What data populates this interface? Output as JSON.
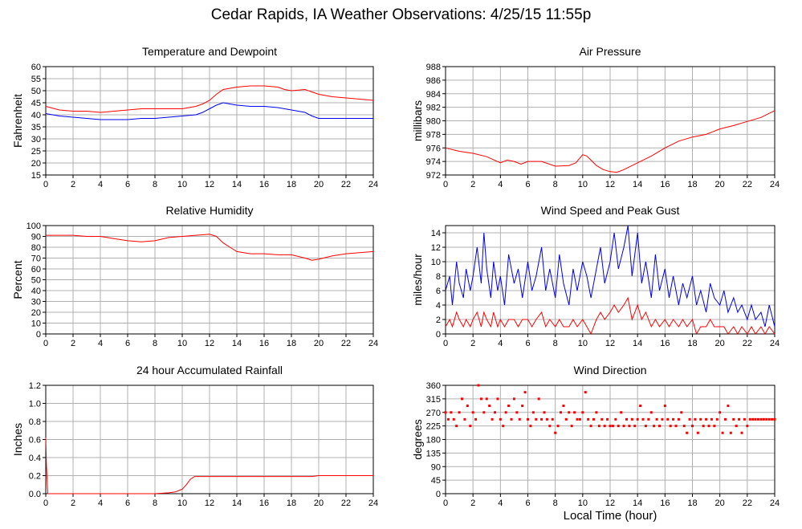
{
  "figure": {
    "title": "Cedar Rapids, IA Weather Observations: 4/25/15 11:55p",
    "xlabel": "Local Time (hour)"
  },
  "colors": {
    "red": "#ff0000",
    "blue": "#0000ee",
    "grid": "#b0b0b0",
    "axis": "#000000"
  },
  "chart_data": [
    {
      "id": "temp",
      "type": "line",
      "title": "Temperature and Dewpoint",
      "ylabel": "Fahrenheit",
      "xlim": [
        0,
        24
      ],
      "ylim": [
        15,
        60
      ],
      "xticks": [
        0,
        2,
        4,
        6,
        8,
        10,
        12,
        14,
        16,
        18,
        20,
        22,
        24
      ],
      "yticks": [
        15,
        20,
        25,
        30,
        35,
        40,
        45,
        50,
        55,
        60
      ],
      "grid": true,
      "series": [
        {
          "color": "red",
          "x": [
            0,
            1,
            2,
            3,
            4,
            5,
            6,
            7,
            8,
            9,
            10,
            11,
            11.5,
            12,
            12.5,
            13,
            13.5,
            14,
            15,
            16,
            17,
            17.5,
            18,
            19,
            19.5,
            20,
            21,
            22,
            23,
            24
          ],
          "y": [
            43.5,
            42,
            41.5,
            41.5,
            41,
            41.5,
            42,
            42.5,
            42.5,
            42.5,
            42.5,
            43.5,
            44.5,
            46,
            48.5,
            50.5,
            51,
            51.5,
            52,
            52,
            51.5,
            50.5,
            50,
            50.5,
            49.5,
            48.5,
            47.5,
            47,
            46.5,
            46
          ]
        },
        {
          "color": "blue",
          "x": [
            0,
            1,
            2,
            3,
            4,
            5,
            6,
            7,
            8,
            9,
            10,
            11,
            11.5,
            12,
            12.5,
            13,
            13.5,
            14,
            15,
            16,
            17,
            17.5,
            18,
            19,
            19.5,
            20,
            21,
            22,
            23,
            24
          ],
          "y": [
            40.5,
            39.5,
            39,
            38.5,
            38,
            38,
            38,
            38.5,
            38.5,
            39,
            39.5,
            40,
            41,
            42.5,
            44,
            45,
            44.5,
            44,
            43.5,
            43.5,
            43,
            42.5,
            42,
            41,
            39.5,
            38.5,
            38.5,
            38.5,
            38.5,
            38.5
          ]
        }
      ]
    },
    {
      "id": "pressure",
      "type": "line",
      "title": "Air Pressure",
      "ylabel": "millibars",
      "xlim": [
        0,
        24
      ],
      "ylim": [
        972,
        988
      ],
      "xticks": [
        0,
        2,
        4,
        6,
        8,
        10,
        12,
        14,
        16,
        18,
        20,
        22,
        24
      ],
      "yticks": [
        972,
        974,
        976,
        978,
        980,
        982,
        984,
        986,
        988
      ],
      "grid": true,
      "series": [
        {
          "color": "red",
          "x": [
            0,
            1,
            2,
            3,
            4,
            4.5,
            5,
            5.5,
            6,
            7,
            8,
            9,
            9.5,
            10,
            10.3,
            10.7,
            11,
            11.5,
            12,
            12.5,
            13,
            14,
            15,
            16,
            17,
            18,
            19,
            20,
            21,
            22,
            23,
            24
          ],
          "y": [
            976,
            975.5,
            975.2,
            974.7,
            973.8,
            974.2,
            974.0,
            973.6,
            974.0,
            974.0,
            973.3,
            973.4,
            973.8,
            975.0,
            974.8,
            974.0,
            973.4,
            972.8,
            972.5,
            972.4,
            972.8,
            973.8,
            974.8,
            976.0,
            977.0,
            977.6,
            978.0,
            978.8,
            979.3,
            979.9,
            980.5,
            981.5
          ]
        }
      ]
    },
    {
      "id": "humidity",
      "type": "line",
      "title": "Relative Humidity",
      "ylabel": "Percent",
      "xlim": [
        0,
        24
      ],
      "ylim": [
        0,
        100
      ],
      "xticks": [
        0,
        2,
        4,
        6,
        8,
        10,
        12,
        14,
        16,
        18,
        20,
        22,
        24
      ],
      "yticks": [
        0,
        10,
        20,
        30,
        40,
        50,
        60,
        70,
        80,
        90,
        100
      ],
      "grid": true,
      "series": [
        {
          "color": "red",
          "x": [
            0,
            1,
            2,
            3,
            4,
            5,
            6,
            7,
            8,
            9,
            10,
            11,
            12,
            12.5,
            13,
            13.5,
            14,
            15,
            16,
            17,
            18,
            19,
            19.5,
            20,
            21,
            22,
            23,
            24
          ],
          "y": [
            91,
            91,
            91,
            90,
            90,
            88,
            86,
            85,
            86,
            89,
            90,
            91,
            92,
            90,
            84,
            80,
            76,
            74,
            74,
            73,
            73,
            70,
            68,
            69,
            72,
            74,
            75,
            76
          ]
        }
      ]
    },
    {
      "id": "wind",
      "type": "line",
      "title": "Wind Speed and Peak Gust",
      "ylabel": "miles/hour",
      "xlim": [
        0,
        24
      ],
      "ylim": [
        0,
        15
      ],
      "xticks": [
        0,
        2,
        4,
        6,
        8,
        10,
        12,
        14,
        16,
        18,
        20,
        22,
        24
      ],
      "yticks": [
        0,
        2,
        4,
        6,
        8,
        10,
        12,
        14
      ],
      "grid": true,
      "series": [
        {
          "color": "blue",
          "x": [
            0,
            0.3,
            0.5,
            0.8,
            1,
            1.3,
            1.5,
            1.8,
            2,
            2.3,
            2.6,
            2.8,
            3,
            3.3,
            3.5,
            3.8,
            4,
            4.3,
            4.6,
            5,
            5.3,
            5.6,
            6,
            6.3,
            6.6,
            7,
            7.3,
            7.6,
            8,
            8.3,
            8.6,
            9,
            9.3,
            9.6,
            10,
            10.3,
            10.6,
            11,
            11.3,
            11.6,
            12,
            12.3,
            12.6,
            13,
            13.3,
            13.6,
            14,
            14.3,
            14.6,
            15,
            15.3,
            15.6,
            16,
            16.3,
            16.6,
            17,
            17.3,
            17.6,
            18,
            18.3,
            18.6,
            19,
            19.3,
            19.6,
            20,
            20.3,
            20.6,
            21,
            21.3,
            21.6,
            22,
            22.3,
            22.6,
            23,
            23.3,
            23.6,
            24
          ],
          "y": [
            6,
            8,
            4,
            10,
            7,
            5,
            9,
            6,
            8,
            12,
            7,
            14,
            9,
            5,
            10,
            6,
            8,
            4,
            11,
            7,
            9,
            5,
            10,
            6,
            8,
            12,
            6,
            9,
            5,
            11,
            7,
            4,
            9,
            6,
            10,
            8,
            5,
            9,
            12,
            7,
            10,
            14,
            9,
            12,
            15,
            8,
            14,
            7,
            10,
            5,
            11,
            6,
            9,
            5,
            8,
            4,
            7,
            5,
            8,
            4,
            6,
            3,
            7,
            5,
            4,
            6,
            3,
            5,
            3,
            4,
            2,
            4,
            2,
            3,
            1,
            4,
            1
          ]
        },
        {
          "color": "red",
          "x": [
            0,
            0.3,
            0.5,
            0.8,
            1,
            1.3,
            1.5,
            1.8,
            2,
            2.3,
            2.6,
            2.8,
            3,
            3.3,
            3.5,
            3.8,
            4,
            4.3,
            4.6,
            5,
            5.3,
            5.6,
            6,
            6.3,
            6.6,
            7,
            7.3,
            7.6,
            8,
            8.3,
            8.6,
            9,
            9.3,
            9.6,
            10,
            10.3,
            10.6,
            11,
            11.3,
            11.6,
            12,
            12.3,
            12.6,
            13,
            13.3,
            13.6,
            14,
            14.3,
            14.6,
            15,
            15.3,
            15.6,
            16,
            16.3,
            16.6,
            17,
            17.3,
            17.6,
            18,
            18.3,
            18.6,
            19,
            19.3,
            19.6,
            20,
            20.3,
            20.6,
            21,
            21.3,
            21.6,
            22,
            22.3,
            22.6,
            23,
            23.3,
            23.6,
            24
          ],
          "y": [
            1,
            2,
            1,
            3,
            2,
            1,
            2,
            1,
            2,
            3,
            1,
            3,
            2,
            1,
            3,
            1,
            2,
            1,
            2,
            2,
            1,
            2,
            2,
            1,
            2,
            3,
            1,
            2,
            1,
            2,
            1,
            1,
            2,
            1,
            2,
            1,
            0,
            2,
            3,
            2,
            3,
            4,
            3,
            4,
            5,
            2,
            4,
            2,
            3,
            1,
            2,
            1,
            2,
            1,
            2,
            1,
            2,
            1,
            2,
            0,
            1,
            1,
            2,
            1,
            1,
            1,
            0,
            1,
            0,
            1,
            0,
            1,
            0,
            1,
            0,
            1,
            0
          ]
        }
      ]
    },
    {
      "id": "rain",
      "type": "line",
      "title": "24 hour Accumulated Rainfall",
      "ylabel": "Inches",
      "xlim": [
        0,
        24
      ],
      "ylim": [
        0,
        1.2
      ],
      "xticks": [
        0,
        2,
        4,
        6,
        8,
        10,
        12,
        14,
        16,
        18,
        20,
        22,
        24
      ],
      "yticks": [
        0,
        0.2,
        0.4,
        0.6,
        0.8,
        1.0,
        1.2
      ],
      "yticklabels": [
        "0.0",
        "0.2",
        "0.4",
        "0.6",
        "0.8",
        "1.0",
        "1.2"
      ],
      "grid": true,
      "series": [
        {
          "color": "red",
          "x": [
            0,
            0.05,
            0.15,
            1,
            4,
            8,
            9,
            9.5,
            10,
            10.3,
            10.6,
            10.9,
            12,
            14,
            16,
            18,
            19.5,
            20,
            22,
            24
          ],
          "y": [
            0.62,
            0.3,
            0.0,
            0.0,
            0.0,
            0.0,
            0.01,
            0.02,
            0.05,
            0.1,
            0.16,
            0.19,
            0.19,
            0.19,
            0.19,
            0.19,
            0.19,
            0.2,
            0.2,
            0.2
          ]
        }
      ]
    },
    {
      "id": "direction",
      "type": "scatter",
      "title": "Wind Direction",
      "ylabel": "degrees",
      "xlim": [
        0,
        24
      ],
      "ylim": [
        0,
        360
      ],
      "xticks": [
        0,
        2,
        4,
        6,
        8,
        10,
        12,
        14,
        16,
        18,
        20,
        22,
        24
      ],
      "yticks": [
        0,
        45,
        90,
        135,
        180,
        225,
        270,
        315,
        360
      ],
      "grid": true,
      "series": [
        {
          "color": "red",
          "x": [
            0,
            0.2,
            0.4,
            0.6,
            0.8,
            1.0,
            1.2,
            1.4,
            1.6,
            1.8,
            2.0,
            2.2,
            2.4,
            2.6,
            2.8,
            3.0,
            3.2,
            3.4,
            3.6,
            3.8,
            4.0,
            4.2,
            4.4,
            4.6,
            4.8,
            5.0,
            5.2,
            5.4,
            5.6,
            5.8,
            6.0,
            6.2,
            6.4,
            6.6,
            6.8,
            7.0,
            7.2,
            7.4,
            7.6,
            7.8,
            8.0,
            8.2,
            8.4,
            8.6,
            8.8,
            9.0,
            9.2,
            9.4,
            9.6,
            9.8,
            10.0,
            10.2,
            10.4,
            10.6,
            10.8,
            11.0,
            11.2,
            11.4,
            11.6,
            11.8,
            12.0,
            12.2,
            12.4,
            12.6,
            12.8,
            13.0,
            13.2,
            13.4,
            13.6,
            13.8,
            14.0,
            14.2,
            14.4,
            14.6,
            14.8,
            15.0,
            15.2,
            15.4,
            15.6,
            15.8,
            16.0,
            16.2,
            16.4,
            16.6,
            16.8,
            17.0,
            17.2,
            17.4,
            17.6,
            17.8,
            18.0,
            18.2,
            18.4,
            18.6,
            18.8,
            19.0,
            19.2,
            19.4,
            19.6,
            19.8,
            20.0,
            20.2,
            20.4,
            20.6,
            20.8,
            21.0,
            21.2,
            21.4,
            21.6,
            21.8,
            22.0,
            22.2,
            22.4,
            22.6,
            22.8,
            23.0,
            23.2,
            23.4,
            23.6,
            23.8,
            24.0
          ],
          "y": [
            270,
            247,
            270,
            247,
            225,
            270,
            315,
            247,
            292,
            225,
            270,
            247,
            360,
            315,
            270,
            315,
            292,
            247,
            270,
            315,
            247,
            225,
            270,
            292,
            247,
            315,
            270,
            247,
            292,
            337,
            247,
            225,
            270,
            247,
            315,
            247,
            270,
            247,
            225,
            247,
            202,
            225,
            270,
            292,
            247,
            270,
            225,
            270,
            247,
            247,
            270,
            337,
            247,
            225,
            247,
            270,
            225,
            247,
            225,
            247,
            225,
            225,
            247,
            225,
            270,
            225,
            247,
            225,
            247,
            225,
            247,
            292,
            247,
            225,
            247,
            270,
            225,
            247,
            225,
            247,
            292,
            247,
            225,
            247,
            225,
            247,
            270,
            225,
            202,
            247,
            225,
            247,
            202,
            247,
            225,
            247,
            225,
            247,
            225,
            247,
            270,
            202,
            247,
            292,
            202,
            247,
            225,
            247,
            202,
            247,
            225,
            247,
            247,
            247,
            247,
            247,
            247,
            247,
            247,
            247,
            247
          ]
        }
      ]
    }
  ]
}
